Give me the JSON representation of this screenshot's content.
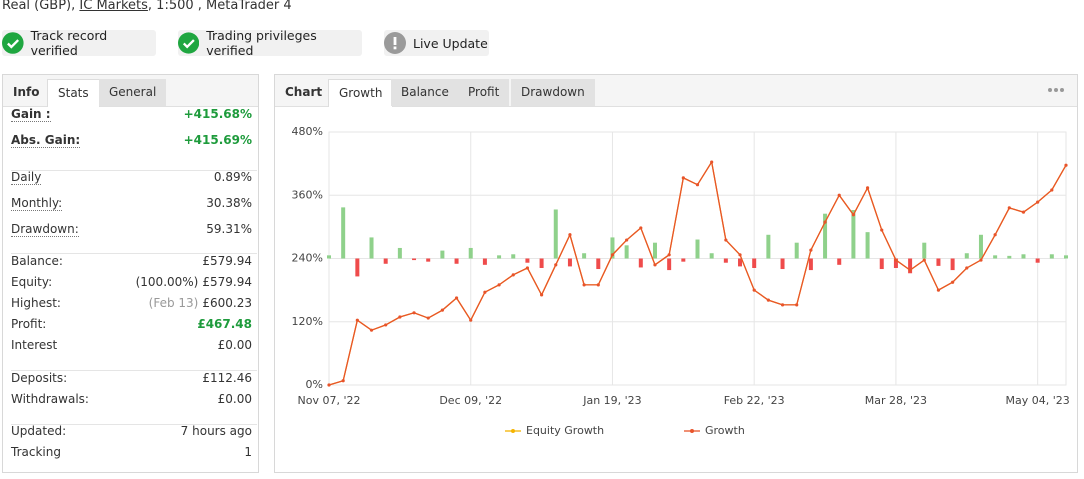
{
  "header": {
    "account": "Real (GBP),",
    "broker": "IC Markets",
    "details": ", 1:500 , MetaTrader 4"
  },
  "badges": [
    "Track record verified",
    "Trading privileges verified",
    "Live Update"
  ],
  "stats_panel": {
    "tabs": [
      "Info",
      "Stats",
      "General"
    ],
    "groups": [
      [
        {
          "label": "Gain :",
          "value": "+415.68%",
          "color": "#1e9b3c"
        },
        {
          "label": "Abs. Gain:",
          "value": "+415.69%",
          "color": "#1e9b3c"
        }
      ],
      [
        {
          "label": "Daily",
          "value": "0.89%"
        },
        {
          "label": "Monthly:",
          "value": "30.38%"
        },
        {
          "label": "Drawdown:",
          "value": "59.31%"
        }
      ],
      [
        {
          "label": "Balance:",
          "value": "£579.94"
        },
        {
          "label": "Equity:",
          "note": "(100.00%)",
          "value": "£579.94"
        },
        {
          "label": "Highest:",
          "note": "(Feb 13)",
          "value": "£600.23"
        },
        {
          "label": "Profit:",
          "value": "£467.48",
          "color": "#1e9b3c"
        },
        {
          "label": "Interest",
          "value": "£0.00"
        }
      ],
      [
        {
          "label": "Deposits:",
          "value": "£112.46"
        },
        {
          "label": "Withdrawals:",
          "value": "£0.00"
        }
      ],
      [
        {
          "label": "Updated:",
          "value": "7 hours ago"
        },
        {
          "label": "Tracking",
          "value": "1"
        }
      ]
    ]
  },
  "chart_panel": {
    "tabs": [
      "Chart",
      "Growth",
      "Balance",
      "Profit",
      "Drawdown"
    ]
  },
  "chart_data": {
    "type": "line",
    "categories": [
      "Nov 07, '22",
      null,
      null,
      null,
      null,
      null,
      null,
      null,
      null,
      null,
      "Dec 09, '22",
      null,
      null,
      null,
      null,
      null,
      null,
      null,
      null,
      null,
      "Jan 19, '23",
      null,
      null,
      null,
      null,
      null,
      null,
      null,
      null,
      null,
      "Feb 22, '23",
      null,
      null,
      null,
      null,
      null,
      null,
      null,
      null,
      null,
      "Mar 28, '23",
      null,
      null,
      null,
      null,
      null,
      null,
      null,
      null,
      null,
      "May 04, '23",
      null,
      null
    ],
    "series": [
      {
        "name": "Equity Growth",
        "color": "#f5b400",
        "values": [
          0,
          8,
          123,
          104,
          114,
          129,
          137,
          127,
          142,
          165,
          123,
          176,
          190,
          209,
          222,
          171,
          228,
          285,
          190,
          190,
          247,
          275,
          298,
          228,
          247,
          393,
          380,
          423,
          275,
          247,
          180,
          161,
          152,
          152,
          256,
          309,
          360,
          323,
          374,
          294,
          237,
          218,
          237,
          180,
          195,
          222,
          237,
          285,
          336,
          328,
          347,
          370,
          417
        ]
      },
      {
        "name": "Growth",
        "color": "#e8542a",
        "values": [
          0,
          8,
          123,
          104,
          114,
          129,
          137,
          127,
          142,
          165,
          123,
          176,
          190,
          209,
          222,
          171,
          228,
          285,
          190,
          190,
          247,
          275,
          298,
          228,
          247,
          393,
          380,
          423,
          275,
          247,
          180,
          161,
          152,
          152,
          256,
          309,
          360,
          323,
          374,
          294,
          237,
          218,
          237,
          180,
          195,
          222,
          237,
          285,
          336,
          328,
          347,
          370,
          417
        ]
      }
    ],
    "bars": {
      "baseline": 240,
      "color_up": "#8fd18b",
      "color_down": "#ef4b4b",
      "values": [
        6,
        97,
        -34,
        40,
        -10,
        20,
        -3,
        -6,
        15,
        -10,
        20,
        -12,
        6,
        8,
        -8,
        -18,
        93,
        -15,
        10,
        -20,
        40,
        25,
        -17,
        30,
        -22,
        -6,
        36,
        10,
        -8,
        -15,
        -18,
        45,
        -20,
        30,
        -22,
        85,
        -12,
        92,
        50,
        -20,
        -18,
        -28,
        30,
        -14,
        -22,
        10,
        45,
        6,
        5,
        8,
        -8,
        8,
        6
      ]
    },
    "ylim": [
      0,
      480
    ],
    "yticks": [
      {
        "value": 0,
        "label": "0%"
      },
      {
        "value": 120,
        "label": "120%"
      },
      {
        "value": 240,
        "label": "240%"
      },
      {
        "value": 360,
        "label": "360%"
      },
      {
        "value": 480,
        "label": "480%"
      }
    ],
    "grid": true,
    "legend": "bottom"
  }
}
